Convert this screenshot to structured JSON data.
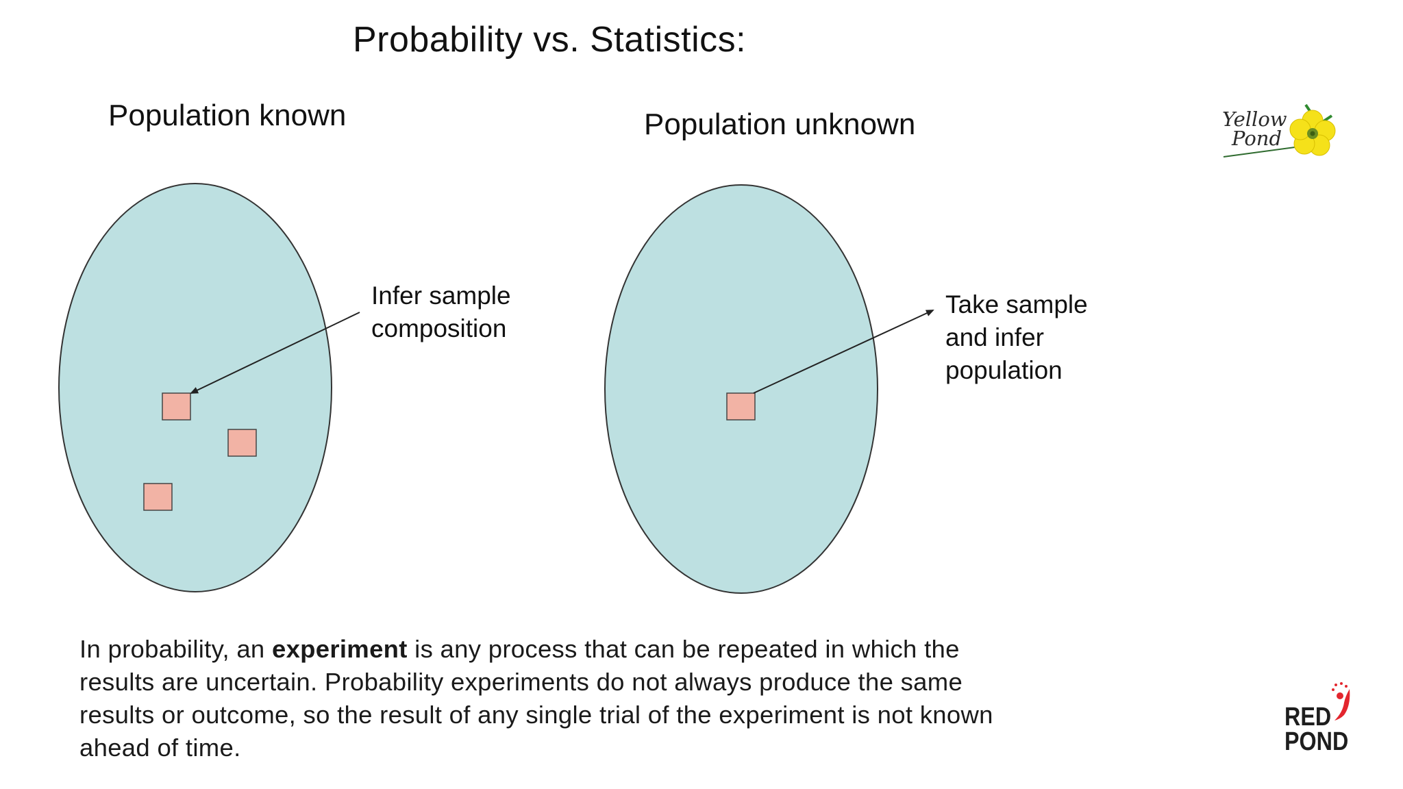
{
  "slide": {
    "title": "Probability vs. Statistics:",
    "left_panel": {
      "heading": "Population known",
      "annotation_lines": [
        "Infer sample",
        "composition"
      ]
    },
    "right_panel": {
      "heading": "Population unknown",
      "annotation_lines": [
        "Take sample",
        "and infer",
        "population"
      ]
    },
    "body": {
      "line1_prefix": "In probability, an ",
      "line1_bold": "experiment",
      "line1_suffix": " is any process that can be repeated in which the",
      "line2": "results are uncertain.  Probability experiments do not always produce the same",
      "line3": "results or outcome, so the result of any single trial of the experiment is not known",
      "line4": "ahead of time."
    }
  },
  "logos": {
    "yellow_pond": [
      "Yellow",
      "Pond"
    ],
    "red_pond": [
      "RED",
      "POND"
    ]
  },
  "colors": {
    "population_fill": "#bde0e1",
    "sample_fill": "#f2b3a5",
    "outline": "#333333",
    "logo_yellow": "#f5e11a",
    "logo_red_accent": "#e3262e"
  }
}
